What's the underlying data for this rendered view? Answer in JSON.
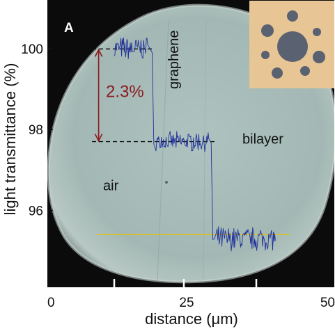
{
  "chart_data": {
    "type": "line",
    "panel_label": "A",
    "xlabel": "distance (μm)",
    "ylabel": "light  transmittance  (%)",
    "xlim": [
      0,
      50
    ],
    "ylim": [
      94.1,
      101.2
    ],
    "x_ticks": [
      0,
      25,
      50
    ],
    "x_tick_labels": [
      "0",
      "25",
      "50"
    ],
    "y_ticks": [
      96,
      98,
      100
    ],
    "y_tick_labels": [
      "96",
      "98",
      "100"
    ],
    "grid": false,
    "legend": "none",
    "series": [
      {
        "color": "#1f2f9a",
        "segments": [
          {
            "x_start": 12,
            "x_end": 18,
            "level": 100.0,
            "noise": 0.25
          },
          {
            "x_start": 19.5,
            "x_end": 29,
            "level": 97.7,
            "noise": 0.2
          },
          {
            "x_start": 30,
            "x_end": 41,
            "level": 95.3,
            "noise": 0.25
          }
        ],
        "transitions": [
          {
            "x": 18.8,
            "from": 100.0,
            "to": 97.7
          },
          {
            "x": 29.4,
            "from": 97.7,
            "to": 95.3
          }
        ]
      }
    ],
    "reference_lines": [
      {
        "style": "dashed",
        "color": "#111111",
        "x_start": 8,
        "x_end": 19,
        "y": 99.99
      },
      {
        "style": "dashed",
        "color": "#111111",
        "x_start": 8,
        "x_end": 30,
        "y": 97.7
      },
      {
        "style": "solid",
        "color": "#e8c200",
        "x_start": 9,
        "x_end": 43.5,
        "y": 95.4
      }
    ],
    "annotations": [
      {
        "id": "air",
        "text": "air",
        "x": 10,
        "y": 96.5,
        "rotate": 0
      },
      {
        "id": "graphene",
        "text": "graphene",
        "x": 23.5,
        "y": 99.0,
        "rotate": -90
      },
      {
        "id": "bilayer",
        "text": "bilayer",
        "x": 35,
        "y": 97.65,
        "rotate": 0
      },
      {
        "id": "delta",
        "text": "2.3%",
        "x": 10.5,
        "y": 98.8,
        "rotate": 0,
        "color": "#8b1a1f"
      }
    ],
    "delta_arrow": {
      "x": 9.2,
      "y_top": 99.99,
      "y_bottom": 97.7,
      "color": "#8b1a1f"
    },
    "scale_marks_x": [
      12,
      24.5,
      37.5
    ],
    "background_photo_color": "#a4b9b5",
    "inset": {
      "background_color": "#e7c594",
      "aperture_color": "#5a6170"
    }
  }
}
